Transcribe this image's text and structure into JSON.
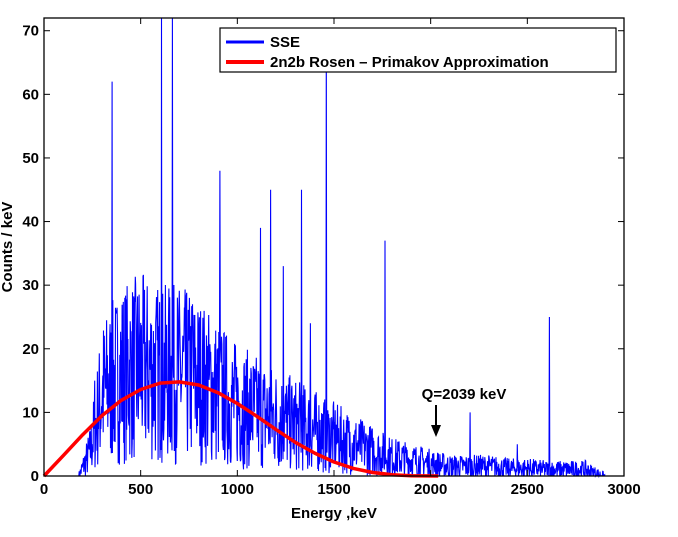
{
  "chart_data": {
    "type": "line",
    "title": "",
    "xlabel": "Energy ,keV",
    "ylabel": "Counts / keV",
    "xlim": [
      0,
      3000
    ],
    "ylim": [
      0,
      72
    ],
    "xticks": [
      0,
      500,
      1000,
      1500,
      2000,
      2500,
      3000
    ],
    "yticks": [
      0,
      10,
      20,
      30,
      40,
      50,
      60,
      70
    ],
    "grid": false,
    "legend_position": "top-right",
    "series": [
      {
        "name": "SSE",
        "color": "#0000ff",
        "style": "noisy spectrum",
        "continuum": {
          "x": [
            180,
            240,
            300,
            400,
            500,
            600,
            700,
            800,
            900,
            1000,
            1100,
            1200,
            1300,
            1400,
            1500,
            1600,
            1700,
            1800,
            1900,
            2000,
            2100,
            2200,
            2300,
            2400,
            2500,
            2600,
            2700,
            2800,
            2850,
            2900
          ],
          "y": [
            0,
            4,
            13,
            16,
            17,
            16,
            16,
            15,
            13,
            11,
            10,
            9,
            8,
            7,
            6,
            5,
            4,
            3,
            2.5,
            2,
            1.5,
            1.5,
            1.5,
            1.2,
            1.2,
            1,
            1,
            1,
            0.5,
            0
          ]
        },
        "peaks": {
          "x": [
            262,
            352,
            609,
            665,
            768,
            911,
            1120,
            1173,
            1238,
            1332,
            1378,
            1460,
            1764,
            2204,
            2448,
            2615
          ],
          "y": [
            15,
            62,
            72,
            72,
            27,
            48,
            39,
            45,
            33,
            45,
            24,
            70,
            37,
            10,
            5,
            25
          ]
        }
      },
      {
        "name": "2n2b Rosen – Primakov Approximation",
        "color": "#ff0000",
        "x": [
          0,
          100,
          200,
          300,
          400,
          500,
          600,
          700,
          800,
          900,
          1000,
          1100,
          1200,
          1300,
          1400,
          1500,
          1600,
          1700,
          1800,
          1900,
          2039
        ],
        "y": [
          0,
          3.2,
          6.5,
          9.5,
          11.9,
          13.6,
          14.6,
          14.8,
          14.3,
          13.1,
          11.4,
          9.4,
          7.3,
          5.3,
          3.6,
          2.2,
          1.2,
          0.55,
          0.2,
          0.05,
          0
        ]
      }
    ],
    "annotations": [
      {
        "text": "Q=2039 keV",
        "x": 2039,
        "y": 7,
        "arrow": "down"
      }
    ]
  }
}
